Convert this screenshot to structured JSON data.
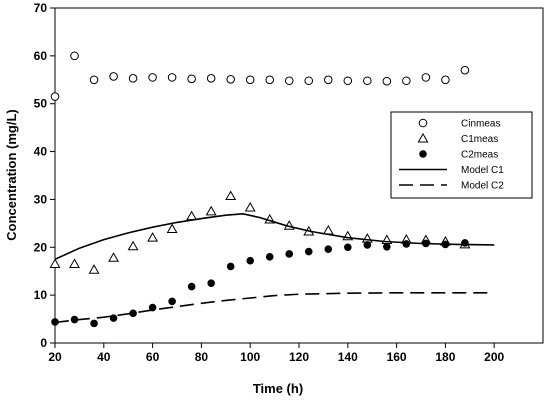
{
  "chart_data": {
    "type": "scatter",
    "xlabel": "Time (h)",
    "ylabel": "Concentration (mg/L)",
    "xlim": [
      20,
      220
    ],
    "ylim": [
      0,
      70
    ],
    "xticks": [
      20,
      40,
      60,
      80,
      100,
      120,
      140,
      160,
      180,
      200
    ],
    "yticks": [
      0,
      10,
      20,
      30,
      40,
      50,
      60,
      70
    ],
    "legend_position": "right",
    "grid": false,
    "series": [
      {
        "name": "Cinmeas",
        "style": "open-circle",
        "color": "#000000",
        "points": [
          [
            20,
            51.5
          ],
          [
            28,
            60
          ],
          [
            36,
            55
          ],
          [
            44,
            55.7
          ],
          [
            52,
            55.3
          ],
          [
            60,
            55.5
          ],
          [
            68,
            55.5
          ],
          [
            76,
            55.2
          ],
          [
            84,
            55.3
          ],
          [
            92,
            55.1
          ],
          [
            100,
            55
          ],
          [
            108,
            55
          ],
          [
            116,
            54.8
          ],
          [
            124,
            54.8
          ],
          [
            132,
            55
          ],
          [
            140,
            54.8
          ],
          [
            148,
            54.8
          ],
          [
            156,
            54.7
          ],
          [
            164,
            54.8
          ],
          [
            172,
            55.5
          ],
          [
            180,
            55
          ],
          [
            188,
            57
          ]
        ]
      },
      {
        "name": "C1meas",
        "style": "open-triangle",
        "color": "#000000",
        "points": [
          [
            20,
            16.5
          ],
          [
            28,
            16.5
          ],
          [
            36,
            15.3
          ],
          [
            44,
            17.8
          ],
          [
            52,
            20.2
          ],
          [
            60,
            22
          ],
          [
            68,
            23.8
          ],
          [
            76,
            26.5
          ],
          [
            84,
            27.5
          ],
          [
            92,
            30.7
          ],
          [
            100,
            28.3
          ],
          [
            108,
            25.8
          ],
          [
            116,
            24.5
          ],
          [
            124,
            23.3
          ],
          [
            132,
            23.5
          ],
          [
            140,
            22.3
          ],
          [
            148,
            21.8
          ],
          [
            156,
            21.5
          ],
          [
            164,
            21.6
          ],
          [
            172,
            21.5
          ],
          [
            180,
            21.2
          ],
          [
            188,
            20.6
          ]
        ]
      },
      {
        "name": "C2meas",
        "style": "filled-circle",
        "color": "#000000",
        "points": [
          [
            20,
            4.4
          ],
          [
            28,
            4.9
          ],
          [
            36,
            4.1
          ],
          [
            44,
            5.2
          ],
          [
            52,
            6.2
          ],
          [
            60,
            7.4
          ],
          [
            68,
            8.7
          ],
          [
            76,
            11.8
          ],
          [
            84,
            12.5
          ],
          [
            92,
            16
          ],
          [
            100,
            17.2
          ],
          [
            108,
            18
          ],
          [
            116,
            18.6
          ],
          [
            124,
            19.1
          ],
          [
            132,
            19.6
          ],
          [
            140,
            20
          ],
          [
            148,
            20.5
          ],
          [
            156,
            20.1
          ],
          [
            164,
            20.7
          ],
          [
            172,
            20.8
          ],
          [
            180,
            20.6
          ],
          [
            188,
            20.9
          ]
        ]
      },
      {
        "name": "Model C1",
        "style": "solid-line",
        "color": "#000000",
        "points": [
          [
            20,
            17.5
          ],
          [
            30,
            19.8
          ],
          [
            40,
            21.6
          ],
          [
            50,
            23
          ],
          [
            60,
            24.2
          ],
          [
            70,
            25.2
          ],
          [
            80,
            26
          ],
          [
            90,
            26.7
          ],
          [
            97,
            27
          ],
          [
            104,
            26.2
          ],
          [
            115,
            24.5
          ],
          [
            125,
            23.3
          ],
          [
            140,
            22
          ],
          [
            155,
            21.2
          ],
          [
            170,
            20.8
          ],
          [
            185,
            20.6
          ],
          [
            200,
            20.5
          ]
        ]
      },
      {
        "name": "Model C2",
        "style": "dashed-line",
        "color": "#000000",
        "points": [
          [
            20,
            4.3
          ],
          [
            30,
            4.9
          ],
          [
            40,
            5.4
          ],
          [
            50,
            6.1
          ],
          [
            60,
            6.9
          ],
          [
            70,
            7.6
          ],
          [
            80,
            8.3
          ],
          [
            90,
            8.9
          ],
          [
            100,
            9.4
          ],
          [
            110,
            9.9
          ],
          [
            120,
            10.2
          ],
          [
            140,
            10.4
          ],
          [
            160,
            10.5
          ],
          [
            180,
            10.5
          ],
          [
            200,
            10.5
          ]
        ]
      }
    ]
  }
}
